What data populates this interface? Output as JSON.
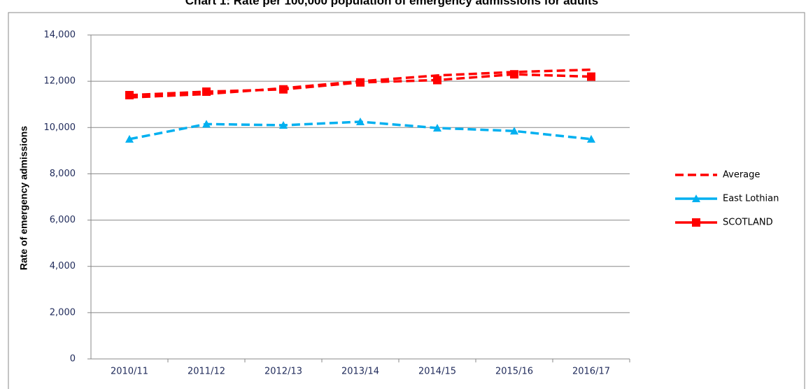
{
  "chart_data": {
    "type": "line",
    "title": "Chart 1: Rate per 100,000 population of emergency admissions for adults",
    "y_label": "Rate of emergency admissions",
    "categories": [
      "2010/11",
      "2011/12",
      "2012/13",
      "2013/14",
      "2014/15",
      "2015/16",
      "2016/17"
    ],
    "series": [
      {
        "name": "Average",
        "color": "#ff0000",
        "marker": "none",
        "values": [
          11300,
          11450,
          11700,
          12000,
          12250,
          12400,
          12500
        ]
      },
      {
        "name": "East Lothian",
        "color": "#00b0f0",
        "marker": "triangle",
        "values": [
          9500,
          10150,
          10100,
          10250,
          9980,
          9850,
          9500
        ]
      },
      {
        "name": "SCOTLAND",
        "color": "#ff0000",
        "marker": "square",
        "values": [
          11400,
          11550,
          11650,
          11950,
          12050,
          12300,
          12200
        ]
      }
    ],
    "ylim": [
      0,
      14000
    ],
    "yticks": [
      0,
      {
        "value": 2000,
        "label": "2,000"
      },
      {
        "value": 4000,
        "label": "4,000"
      },
      {
        "value": 6000,
        "label": "6,000"
      },
      {
        "value": 8000,
        "label": "8,000"
      },
      {
        "value": 10000,
        "label": "10,000"
      },
      {
        "value": 12000,
        "label": "12,000"
      },
      {
        "value": 14000,
        "label": "14,000"
      }
    ],
    "grid": true,
    "legend": "right"
  }
}
